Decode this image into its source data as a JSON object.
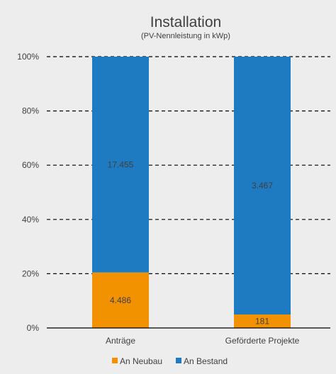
{
  "chart_data": {
    "type": "bar",
    "stacked": "percent",
    "title": "Installation",
    "subtitle": "(PV-Nennleistung in kWp)",
    "categories": [
      "Anträge",
      "Geförderte Projekte"
    ],
    "series": [
      {
        "name": "An Neubau",
        "values": [
          4486,
          181
        ],
        "labels": [
          "4.486",
          "181"
        ],
        "color": "#f39200"
      },
      {
        "name": "An Bestand",
        "values": [
          17455,
          3467
        ],
        "labels": [
          "17.455",
          "3.467"
        ],
        "color": "#1f7bc1"
      }
    ],
    "yticks": [
      "0%",
      "20%",
      "40%",
      "60%",
      "80%",
      "100%"
    ],
    "ylim": [
      0,
      100
    ],
    "grid": true,
    "legend_position": "bottom"
  }
}
